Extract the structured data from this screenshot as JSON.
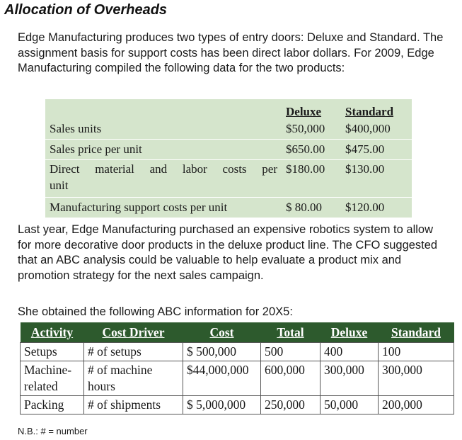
{
  "title": "Allocation of Overheads",
  "intro": "Edge Manufacturing produces two types of entry doors: Deluxe and Standard. The assignment basis for support costs has been direct labor dollars. For 2009, Edge Manufacturing compiled the following data for the two products:",
  "table1": {
    "headers": [
      "Deluxe",
      "Standard"
    ],
    "rows": [
      {
        "label": "Sales units",
        "deluxe": "$50,000",
        "standard": "$400,000"
      },
      {
        "label": "Sales price per unit",
        "deluxe": "$650.00",
        "standard": "$475.00"
      },
      {
        "label_line1": "Direct material and labor costs per",
        "label_line2": "unit",
        "deluxe": "$180.00",
        "standard": "$130.00"
      },
      {
        "label": "Manufacturing support costs per unit",
        "deluxe": "$ 80.00",
        "standard": "$120.00"
      }
    ]
  },
  "para2": "Last year, Edge Manufacturing purchased an expensive robotics system to allow for more decorative door products in the deluxe product line. The CFO suggested that an ABC analysis could be valuable to help evaluate a product mix and promotion strategy for the next sales campaign.",
  "para3": "She obtained the following ABC information for 20X5:",
  "table2": {
    "headers": [
      "Activity",
      "Cost Driver",
      "Cost",
      "Total",
      "Deluxe",
      "Standard"
    ],
    "rows": [
      {
        "activity_line1": "Setups",
        "activity_line2": "",
        "driver_line1": "# of setups",
        "driver_line2": "",
        "cost": "$ 500,000",
        "total": "500",
        "deluxe": "400",
        "standard": "100"
      },
      {
        "activity_line1": "Machine-",
        "activity_line2": "related",
        "driver_line1": "# of machine",
        "driver_line2": "hours",
        "cost": "$44,000,000",
        "total": "600,000",
        "deluxe": "300,000",
        "standard": "300,000"
      },
      {
        "activity_line1": "Packing",
        "activity_line2": "",
        "driver_line1": "# of shipments",
        "driver_line2": "",
        "cost": "$ 5,000,000",
        "total": "250,000",
        "deluxe": "50,000",
        "standard": "200,000"
      }
    ]
  },
  "note": "N.B.: # = number",
  "colors": {
    "table1_bg": "#d5e5cc",
    "table2_header_bg": "#2d5a2d"
  }
}
